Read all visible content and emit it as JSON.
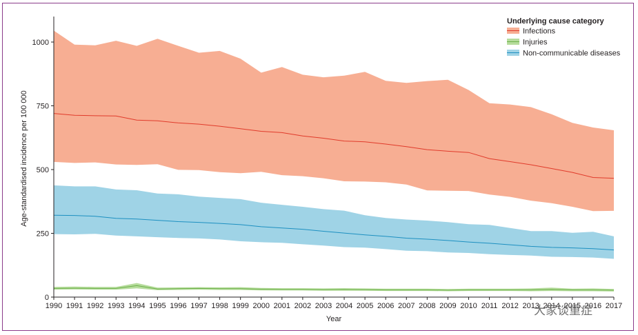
{
  "chart_data": {
    "type": "area",
    "title": "",
    "xlabel": "Year",
    "ylabel": "Age-standardised incidence per 100 000",
    "xlim": [
      1990,
      2017
    ],
    "ylim": [
      0,
      1100
    ],
    "yticks": [
      0,
      250,
      500,
      750,
      1000
    ],
    "xticks": [
      1990,
      1991,
      1992,
      1993,
      1994,
      1995,
      1996,
      1997,
      1998,
      1999,
      2000,
      2001,
      2002,
      2003,
      2004,
      2005,
      2006,
      2007,
      2008,
      2009,
      2010,
      2011,
      2012,
      2013,
      2014,
      2015,
      2016,
      2017
    ],
    "grid": false,
    "legend": {
      "title": "Underlying cause category",
      "placement": "top-right",
      "entries": [
        "Infections",
        "Injuries",
        "Non-communicable diseases"
      ]
    },
    "x": [
      1990,
      1991,
      1992,
      1993,
      1994,
      1995,
      1996,
      1997,
      1998,
      1999,
      2000,
      2001,
      2002,
      2003,
      2004,
      2005,
      2006,
      2007,
      2008,
      2009,
      2010,
      2011,
      2012,
      2013,
      2014,
      2015,
      2016,
      2017
    ],
    "series": [
      {
        "name": "Infections",
        "color": "#f7ae93",
        "line_color": "#e03a2a",
        "mean": [
          720,
          713,
          711,
          710,
          694,
          691,
          683,
          678,
          670,
          660,
          650,
          645,
          632,
          623,
          612,
          609,
          600,
          590,
          578,
          572,
          567,
          543,
          531,
          519,
          504,
          489,
          469,
          466
        ],
        "upper": [
          1045,
          990,
          987,
          1005,
          985,
          1013,
          985,
          958,
          965,
          935,
          880,
          902,
          872,
          862,
          868,
          883,
          848,
          840,
          847,
          852,
          812,
          760,
          755,
          745,
          717,
          683,
          665,
          654
        ],
        "lower": [
          530,
          526,
          528,
          520,
          518,
          521,
          499,
          498,
          490,
          486,
          491,
          478,
          474,
          466,
          454,
          453,
          450,
          441,
          418,
          417,
          416,
          402,
          393,
          378,
          368,
          354,
          337,
          338
        ]
      },
      {
        "name": "Injuries",
        "color": "#b6dc9c",
        "line_color": "#6cb04a",
        "mean": [
          34,
          35,
          34,
          34,
          45,
          32,
          33,
          34,
          33,
          33,
          31,
          30,
          30,
          29,
          30,
          29,
          28,
          28,
          28,
          27,
          28,
          28,
          28,
          28,
          30,
          28,
          28,
          27
        ],
        "upper": [
          40,
          41,
          40,
          40,
          55,
          37,
          38,
          39,
          38,
          39,
          36,
          35,
          35,
          34,
          35,
          34,
          33,
          33,
          33,
          32,
          33,
          33,
          33,
          34,
          37,
          33,
          34,
          32
        ],
        "lower": [
          29,
          30,
          29,
          29,
          34,
          27,
          28,
          29,
          28,
          28,
          26,
          26,
          26,
          25,
          25,
          25,
          24,
          24,
          24,
          23,
          24,
          24,
          24,
          23,
          24,
          23,
          23,
          22
        ]
      },
      {
        "name": "Non-communicable diseases",
        "color": "#9fd3e6",
        "line_color": "#1c8fc0",
        "mean": [
          321,
          320,
          317,
          309,
          306,
          301,
          296,
          293,
          289,
          284,
          276,
          271,
          266,
          258,
          251,
          244,
          238,
          231,
          227,
          222,
          216,
          211,
          205,
          199,
          195,
          193,
          190,
          185
        ],
        "upper": [
          438,
          434,
          434,
          422,
          419,
          406,
          403,
          394,
          389,
          384,
          370,
          362,
          354,
          345,
          339,
          321,
          310,
          304,
          300,
          294,
          286,
          283,
          271,
          259,
          259,
          252,
          256,
          238
        ],
        "lower": [
          247,
          246,
          248,
          241,
          238,
          235,
          232,
          230,
          226,
          219,
          215,
          213,
          207,
          202,
          196,
          194,
          188,
          182,
          180,
          175,
          173,
          168,
          165,
          163,
          158,
          157,
          155,
          150
        ]
      }
    ]
  },
  "watermark": "大家谈重症"
}
